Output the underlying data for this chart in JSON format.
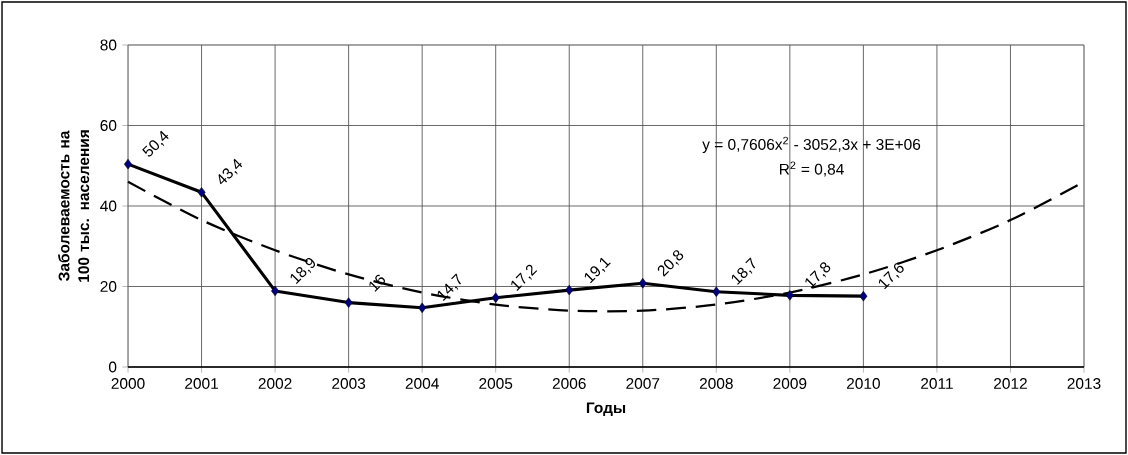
{
  "chart_data": {
    "type": "line",
    "xlabel": "Годы",
    "ylabel": "Заболеваемость на 100 тыс. населения",
    "annotations": [
      "y = 0,7606x$^{2}$ - 3052,3x + 3E+06",
      "R$^{2}$ = 0,84"
    ],
    "xlim": [
      2000,
      2013
    ],
    "xticks": [
      2000,
      2001,
      2002,
      2003,
      2004,
      2005,
      2006,
      2007,
      2008,
      2009,
      2010,
      2011,
      2012,
      2013
    ],
    "ylim": [
      0,
      80
    ],
    "yticks": [
      0,
      20,
      40,
      60,
      80
    ],
    "grid": true,
    "series": [
      {
        "color": "#000000",
        "marker": "diamond",
        "line_style": "solid",
        "x": [
          2000,
          2001,
          2002,
          2003,
          2004,
          2005,
          2006,
          2007,
          2008,
          2009,
          2010
        ],
        "values": [
          50.4,
          43.4,
          18.9,
          16,
          14.7,
          17.2,
          19.1,
          20.8,
          18.7,
          17.8,
          17.6
        ],
        "value_labels": [
          "50,4",
          "43,4",
          "18,9",
          "16",
          "14,7",
          "17,2",
          "19,1",
          "20,8",
          "18,7",
          "17,8",
          "17,6"
        ]
      },
      {
        "color": "#000000",
        "marker": "none",
        "line_style": "dashed",
        "x": [
          2000,
          2001,
          2002,
          2003,
          2004,
          2005,
          2006,
          2007,
          2008,
          2009,
          2010,
          2011,
          2012,
          2013
        ],
        "values": [
          46,
          36.5,
          29,
          23,
          18.5,
          15.5,
          14,
          14,
          15.5,
          18.5,
          23,
          29,
          36.5,
          46
        ]
      }
    ]
  }
}
